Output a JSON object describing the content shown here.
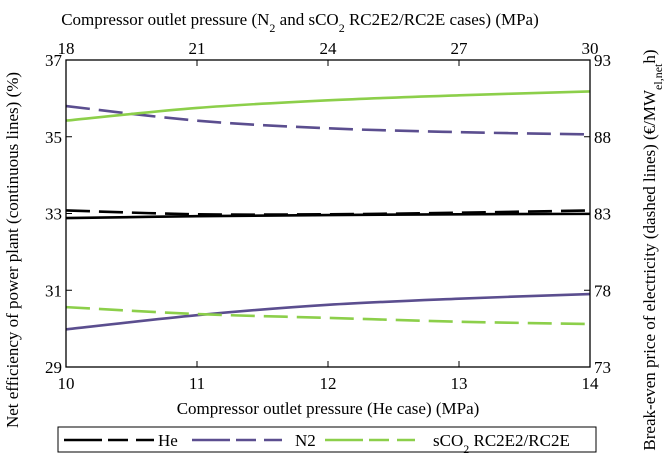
{
  "chart_data": {
    "type": "line",
    "axes": {
      "x_bottom": {
        "label": "Compressor outlet pressure (He case) (MPa)",
        "lim": [
          10,
          14
        ],
        "ticks": [
          10,
          11,
          12,
          13,
          14
        ]
      },
      "x_top": {
        "label_parts": [
          "Compressor outlet pressure (N",
          "2",
          " and sCO",
          "2",
          " RC2E2/RC2E cases) (MPa)"
        ],
        "lim": [
          18,
          30
        ],
        "ticks": [
          18,
          21,
          24,
          27,
          30
        ]
      },
      "y_left": {
        "label": "Net efficiency of power plant (continuous lines) (%)",
        "lim": [
          29,
          37
        ],
        "ticks": [
          29,
          31,
          33,
          35,
          37
        ]
      },
      "y_right": {
        "label_parts": [
          "Break-even price of electricity (dashed lines) (€/MW",
          "el,net",
          "h)"
        ],
        "lim": [
          73,
          93
        ],
        "ticks": [
          73,
          78,
          83,
          88,
          93
        ]
      }
    },
    "series": [
      {
        "name": "He",
        "color": "#000000",
        "efficiency": [
          32.88,
          32.93,
          32.96,
          32.98,
          32.99
        ],
        "break_even_price": [
          83.2,
          82.95,
          82.95,
          83.05,
          83.2
        ]
      },
      {
        "name": "N2",
        "color": "#5b4e8f",
        "efficiency": [
          29.98,
          30.35,
          30.62,
          30.78,
          30.9
        ],
        "break_even_price": [
          90.0,
          89.05,
          88.55,
          88.3,
          88.15
        ]
      },
      {
        "name": "sCO2 RC2E2/RC2E",
        "name_parts": [
          "sCO",
          "2",
          " RC2E2/RC2E"
        ],
        "color": "#8ccf4a",
        "efficiency": [
          35.42,
          35.75,
          35.95,
          36.08,
          36.18
        ],
        "break_even_price": [
          76.9,
          76.45,
          76.2,
          75.95,
          75.8
        ]
      }
    ],
    "grid": false,
    "legend_position": "bottom"
  }
}
